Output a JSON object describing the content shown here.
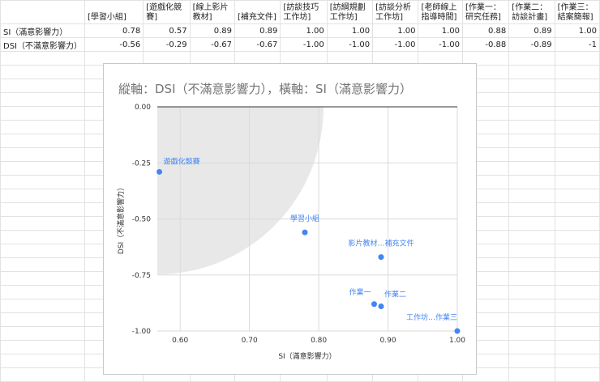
{
  "table": {
    "headers": [
      "",
      "[學習小組]",
      "[遊戲化競賽]",
      "[線上影片教材]",
      "[補充文件]",
      "[訪談技巧工作坊]",
      "[訪綱規劃工作坊]",
      "[訪談分析工作坊]",
      "[老師線上指導時間]",
      "[作業一：研究任務]",
      "[作業二：訪談計畫]",
      "[作業三：結案簡報]"
    ],
    "rows": [
      [
        "SI（滿意影響力）",
        "0.78",
        "0.57",
        "0.89",
        "0.89",
        "1.00",
        "1.00",
        "1.00",
        "1.00",
        "0.88",
        "0.89",
        "1.00"
      ],
      [
        "DSI（不滿意影響力）",
        "-0.56",
        "-0.29",
        "-0.67",
        "-0.67",
        "-1.00",
        "-1.00",
        "-1.00",
        "-1.00",
        "-0.88",
        "-0.89",
        "-1"
      ]
    ]
  },
  "chart_data": {
    "type": "scatter",
    "title": "縱軸：DSI（不滿意影響力），橫軸：SI（滿意影響力）",
    "xlabel": "SI（滿意影響力）",
    "ylabel": "DSI（不滿意影響力）",
    "xlim": [
      0.567,
      1.0
    ],
    "ylim": [
      -1.0,
      0.0
    ],
    "xticks": [
      "0.60",
      "0.70",
      "0.80",
      "0.90",
      "1.00"
    ],
    "yticks": [
      "0.00",
      "-0.25",
      "-0.50",
      "-0.75",
      "-1.00"
    ],
    "grid": true,
    "point_color": "#4285f4",
    "highlight_color": "#e8e8e8",
    "points": [
      {
        "x": 0.78,
        "y": -0.56,
        "label": "學習小組"
      },
      {
        "x": 0.57,
        "y": -0.29,
        "label": "遊戲化競賽"
      },
      {
        "x": 0.89,
        "y": -0.67,
        "label": "影片教材…補充文件"
      },
      {
        "x": 1.0,
        "y": -1.0,
        "label": "工作坊…作業三"
      },
      {
        "x": 0.88,
        "y": -0.88,
        "label": "作業一"
      },
      {
        "x": 0.89,
        "y": -0.89,
        "label": "作業二"
      }
    ]
  }
}
